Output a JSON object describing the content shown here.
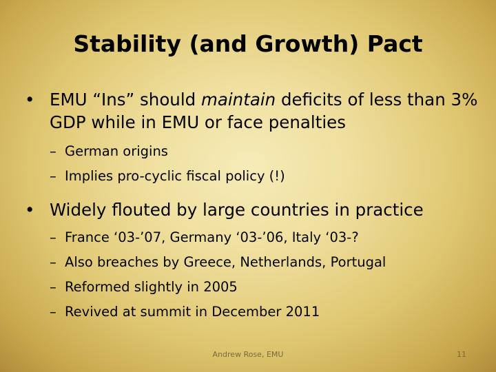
{
  "slide": {
    "title": "Stability (and Growth) Pact",
    "bullets": [
      {
        "marker": "•",
        "text_before": "EMU “Ins” should ",
        "emphasis": "maintain",
        "text_after": " deficits of less than 3% GDP while in EMU or face penalties",
        "subbullets": [
          {
            "marker": "–",
            "text": "German origins"
          },
          {
            "marker": "–",
            "text": "Implies pro-cyclic fiscal policy (!)"
          }
        ]
      },
      {
        "marker": "•",
        "text": "Widely flouted by large countries in practice",
        "subbullets": [
          {
            "marker": "–",
            "text": "France ‘03-’07, Germany ‘03-’06, Italy ‘03-?"
          },
          {
            "marker": "–",
            "text": "Also breaches by Greece, Netherlands, Portugal"
          },
          {
            "marker": "–",
            "text": "Reformed slightly in 2005"
          },
          {
            "marker": "–",
            "text": "Revived at summit in December 2011"
          }
        ]
      }
    ],
    "footer": {
      "source": "Andrew Rose, EMU",
      "page_number": "11"
    }
  }
}
